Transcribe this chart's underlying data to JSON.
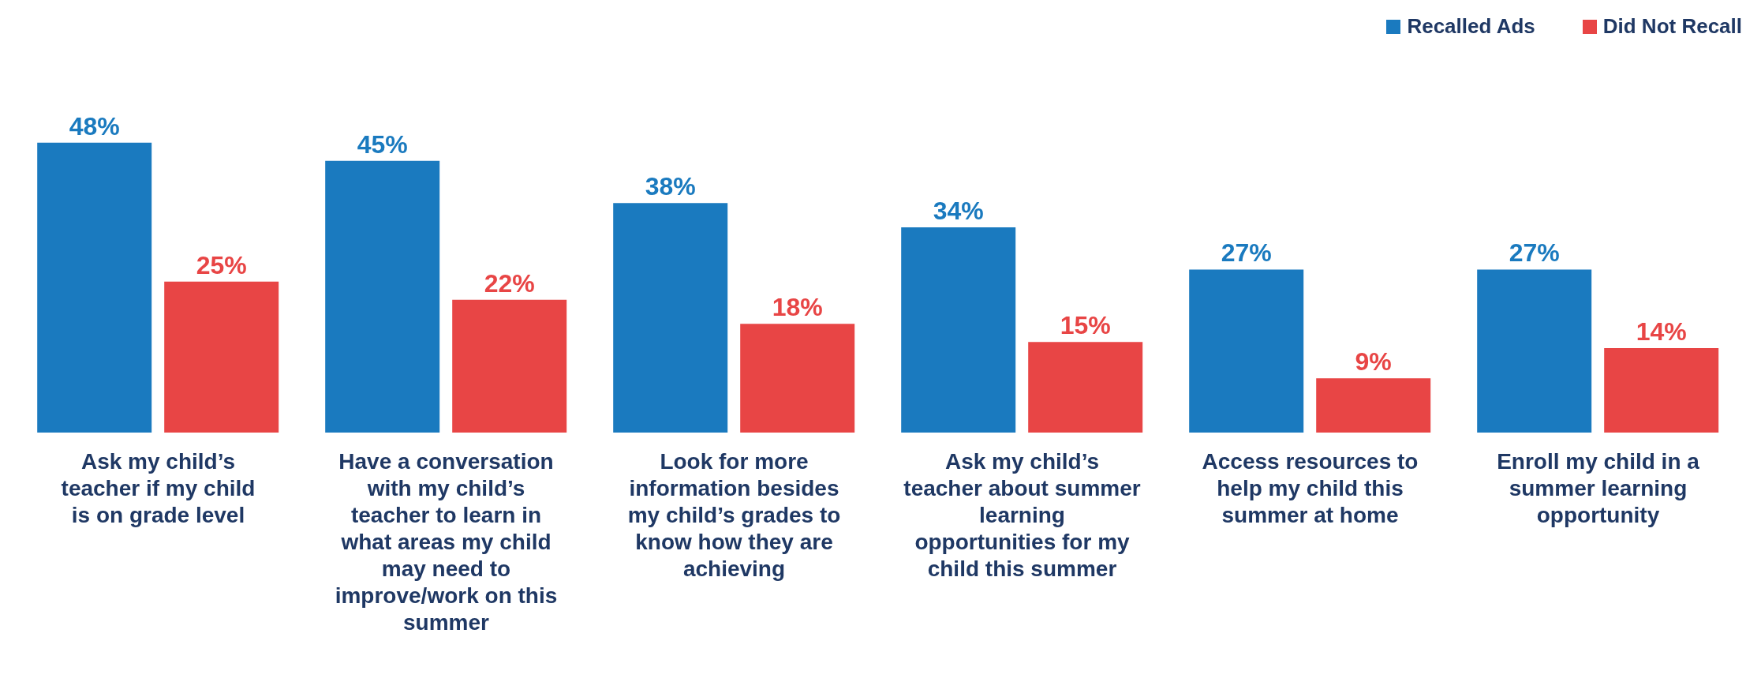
{
  "chart_data": {
    "type": "bar",
    "categories": [
      "Ask my child’s teacher if my child is on grade level",
      "Have a conversation with my child’s teacher to learn in what areas my child may need to improve/work on this summer",
      "Look for more information besides my child’s grades to know how they are achieving",
      "Ask my child’s teacher about summer learning opportunities for my child this summer",
      "Access resources to help my child this summer at home",
      "Enroll my child in a summer learning opportunity"
    ],
    "series": [
      {
        "name": "Recalled Ads",
        "color": "#1a7abf",
        "values": [
          48,
          45,
          38,
          34,
          27,
          27
        ],
        "value_labels": [
          "48%",
          "45%",
          "38%",
          "34%",
          "27%",
          "27%"
        ]
      },
      {
        "name": "Did Not Recall",
        "color": "#e84545",
        "values": [
          25,
          22,
          18,
          15,
          9,
          14
        ],
        "value_labels": [
          "25%",
          "22%",
          "18%",
          "15%",
          "9%",
          "14%"
        ]
      }
    ],
    "legend": "top right",
    "grid": false
  }
}
